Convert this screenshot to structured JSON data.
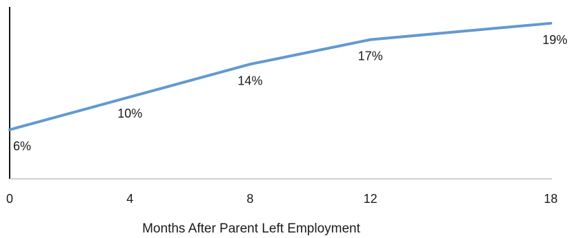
{
  "chart_data": {
    "type": "line",
    "title": "",
    "xlabel": "Months After Parent Left Employment",
    "ylabel": "",
    "x": [
      0,
      4,
      8,
      12,
      18
    ],
    "x_tick_labels": [
      "0",
      "4",
      "8",
      "12",
      "18"
    ],
    "series": [
      {
        "name": "",
        "values": [
          6,
          10,
          14,
          17,
          19
        ],
        "labels": [
          "6%",
          "10%",
          "14%",
          "17%",
          "19%"
        ],
        "color": "#6399d0"
      }
    ],
    "xlim": [
      0,
      18
    ],
    "ylim": [
      0,
      21
    ],
    "grid": false,
    "legend": "none",
    "axis_color": "#111111",
    "baseline_color": "#bfbfbf"
  }
}
